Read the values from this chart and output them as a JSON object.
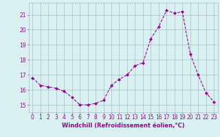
{
  "x": [
    0,
    1,
    2,
    3,
    4,
    5,
    6,
    7,
    8,
    9,
    10,
    11,
    12,
    13,
    14,
    15,
    16,
    17,
    18,
    19,
    20,
    21,
    22,
    23
  ],
  "y": [
    16.8,
    16.3,
    16.2,
    16.1,
    15.9,
    15.5,
    15.0,
    15.0,
    15.1,
    15.3,
    16.3,
    16.7,
    17.0,
    17.6,
    17.8,
    19.4,
    20.2,
    21.3,
    21.1,
    21.2,
    18.4,
    17.0,
    15.8,
    15.2
  ],
  "xlim": [
    -0.5,
    23.5
  ],
  "ylim": [
    14.5,
    21.8
  ],
  "yticks": [
    15,
    16,
    17,
    18,
    19,
    20,
    21
  ],
  "xticks": [
    0,
    1,
    2,
    3,
    4,
    5,
    6,
    7,
    8,
    9,
    10,
    11,
    12,
    13,
    14,
    15,
    16,
    17,
    18,
    19,
    20,
    21,
    22,
    23
  ],
  "xlabel": "Windchill (Refroidissement éolien,°C)",
  "line_color": "#990099",
  "marker": "D",
  "marker_size": 2,
  "linewidth": 0.8,
  "bg_color": "#d8f0f0",
  "grid_color": "#b0b8cc",
  "tick_color": "#990099",
  "label_color": "#990099",
  "font_size_ticks": 5.5,
  "font_size_xlabel": 6.0
}
